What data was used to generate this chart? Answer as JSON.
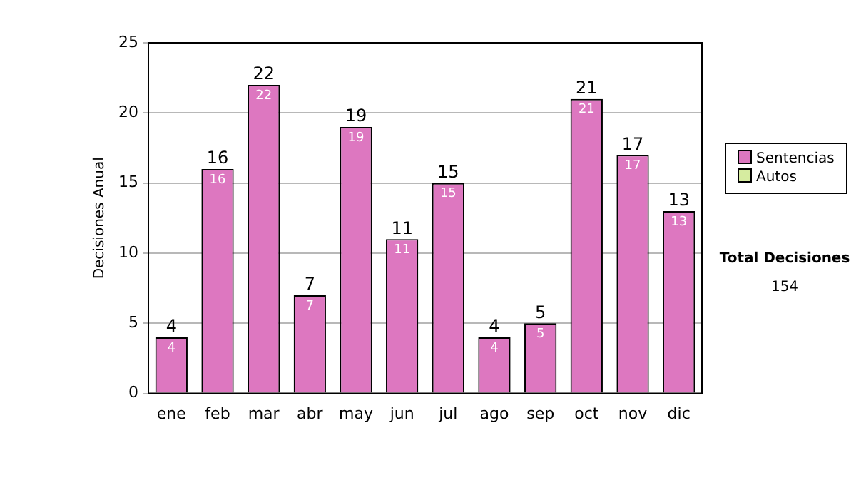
{
  "chart_data": {
    "type": "bar",
    "stacked": true,
    "ylabel": "Decisiones Anual",
    "categories": [
      "ene",
      "feb",
      "mar",
      "abr",
      "may",
      "jun",
      "jul",
      "ago",
      "sep",
      "oct",
      "nov",
      "dic"
    ],
    "series": [
      {
        "name": "Sentencias",
        "color": "#dd77c0",
        "values": [
          4,
          16,
          22,
          7,
          19,
          11,
          15,
          4,
          5,
          21,
          17,
          13
        ],
        "value_labels": [
          "4",
          "16",
          "22",
          "7",
          "19",
          "11",
          "15",
          "4",
          "5",
          "21",
          "17",
          "13"
        ]
      },
      {
        "name": "Autos",
        "color": "#d6eca0",
        "values": [
          0,
          0,
          0,
          0,
          0,
          0,
          0,
          0,
          0,
          0,
          0,
          0
        ],
        "value_labels": [
          null,
          null,
          null,
          null,
          null,
          null,
          null,
          null,
          null,
          null,
          null,
          null
        ]
      }
    ],
    "totals": [
      "4",
      "16",
      "22",
      "7",
      "19",
      "11",
      "15",
      "4",
      "5",
      "21",
      "17",
      "13"
    ],
    "ylim": [
      0,
      25
    ],
    "yticks": [
      0,
      5,
      10,
      15,
      20,
      25
    ],
    "grid": "y",
    "legend": "right",
    "annotations": [
      "Total Decisiones",
      "154"
    ]
  }
}
